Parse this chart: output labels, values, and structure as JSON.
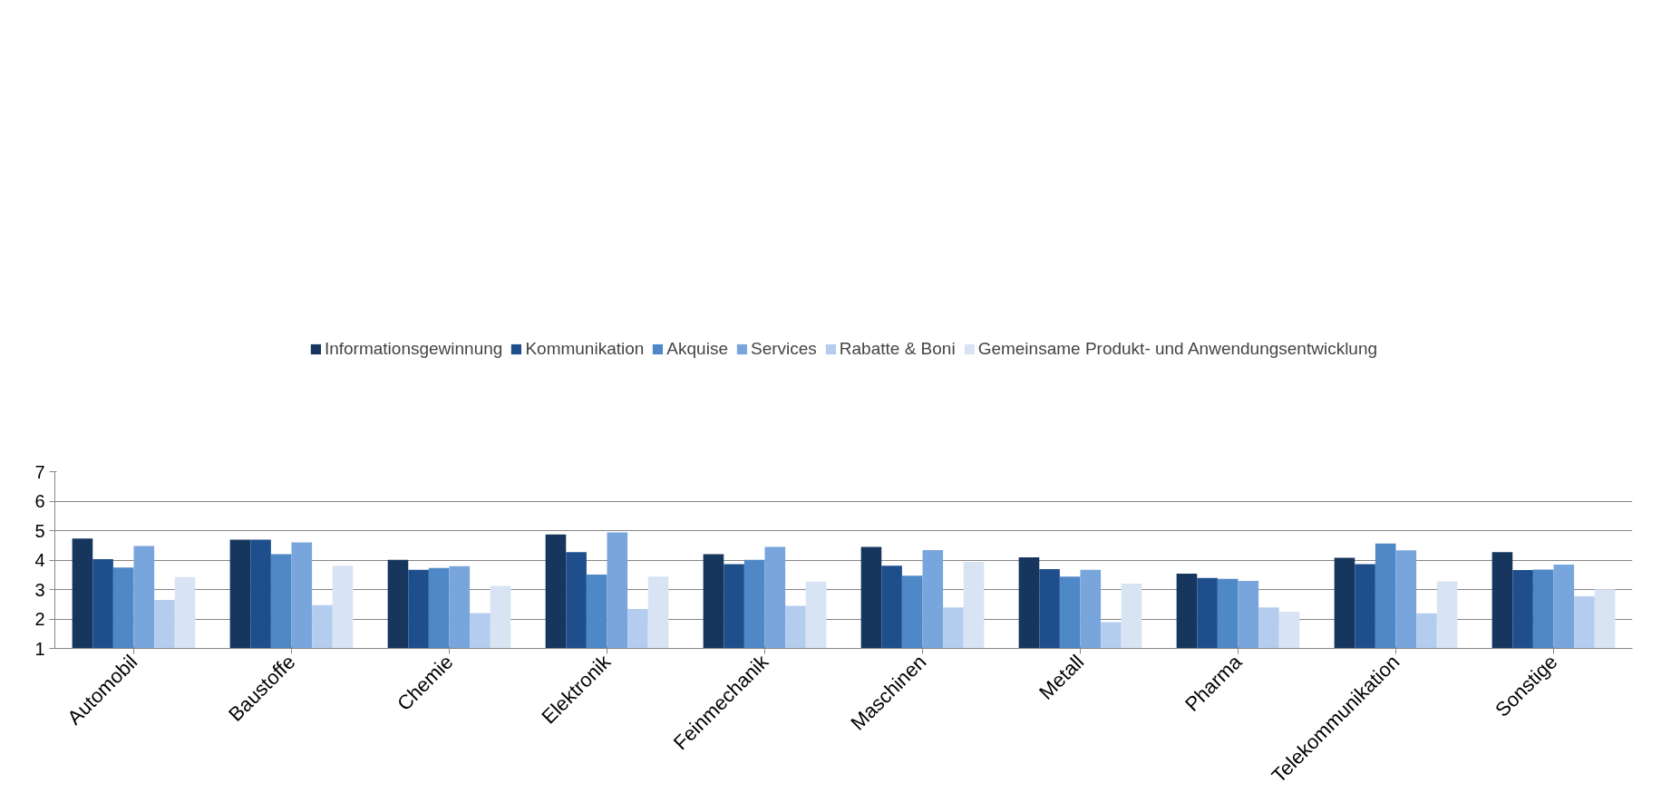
{
  "chart_data": {
    "type": "bar",
    "categories": [
      "Automobil",
      "Baustoffe",
      "Chemie",
      "Elektronik",
      "Feinmechanik",
      "Maschinen",
      "Metall",
      "Pharma",
      "Telekommunikation",
      "Sonstige"
    ],
    "series": [
      {
        "name": "Informationsgewinnung",
        "color": "#17365d",
        "values": [
          4.73,
          4.69,
          4.01,
          4.87,
          4.2,
          4.45,
          4.09,
          3.54,
          4.08,
          4.27
        ]
      },
      {
        "name": "Kommunikation",
        "color": "#1f4e8c",
        "values": [
          4.03,
          4.69,
          3.67,
          4.27,
          3.86,
          3.81,
          3.69,
          3.39,
          3.86,
          3.66
        ]
      },
      {
        "name": "Akquise",
        "color": "#4f88c6",
        "values": [
          3.75,
          4.2,
          3.73,
          3.51,
          4.01,
          3.47,
          3.44,
          3.36,
          4.56,
          3.68
        ]
      },
      {
        "name": "Services",
        "color": "#78a6dc",
        "values": [
          4.48,
          4.6,
          3.79,
          4.94,
          4.45,
          4.34,
          3.67,
          3.29,
          4.33,
          3.85
        ]
      },
      {
        "name": "Rabatte & Boni",
        "color": "#b4cdee",
        "values": [
          2.65,
          2.47,
          2.2,
          2.34,
          2.45,
          2.39,
          1.89,
          2.39,
          2.19,
          2.77
        ]
      },
      {
        "name": "Gemeinsame Produkt- und Anwendungsentwicklung",
        "color": "#d8e4f4",
        "values": [
          3.42,
          3.81,
          3.12,
          3.44,
          3.27,
          3.94,
          3.2,
          2.25,
          3.28,
          3.01
        ]
      }
    ],
    "ylim": [
      1,
      7
    ],
    "yticks": [
      1,
      2,
      3,
      4,
      5,
      6,
      7
    ],
    "grid": "y",
    "legend": "top"
  }
}
